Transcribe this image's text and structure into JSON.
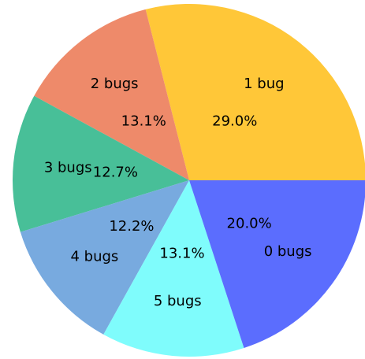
{
  "chart_data": {
    "type": "pie",
    "categories": [
      "1 bug",
      "2 bugs",
      "3 bugs",
      "4 bugs",
      "5 bugs",
      "0 bugs"
    ],
    "values": [
      29.0,
      13.1,
      12.7,
      12.2,
      13.1,
      20.0
    ],
    "value_labels": [
      "29.0%",
      "13.1%",
      "12.7%",
      "12.2%",
      "13.1%",
      "20.0%"
    ],
    "colors": [
      "#ffc738",
      "#ee8a6a",
      "#48bf98",
      "#78aadf",
      "#7ffcfc",
      "#5b6dfe"
    ]
  }
}
